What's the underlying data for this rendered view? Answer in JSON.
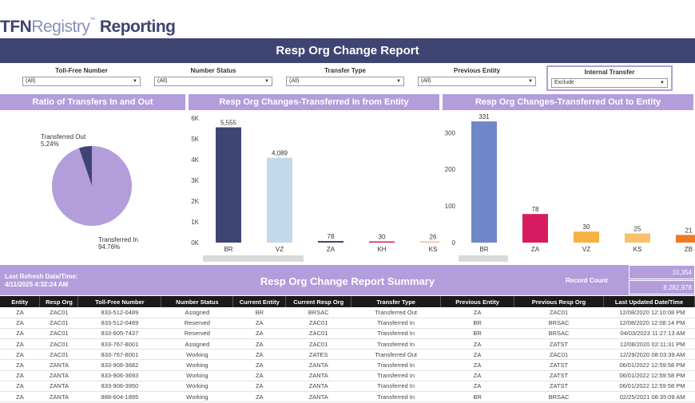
{
  "logo": {
    "tfn": "TFN",
    "registry": "Registry",
    "tm": "™",
    "reporting": "Reporting"
  },
  "title": "Resp Org Change Report",
  "filters": [
    {
      "label": "Toll-Free Number",
      "value": "(All)"
    },
    {
      "label": "Number Status",
      "value": "(All)"
    },
    {
      "label": "Transfer Type",
      "value": "(All)"
    },
    {
      "label": "Previous Entity",
      "value": "(All)"
    },
    {
      "label": "Internal Transfer",
      "value": "Exclude"
    }
  ],
  "sections": {
    "ratio": "Ratio of Transfers In and Out",
    "in": "Resp Org Changes-Transferred In from Entity",
    "out": "Resp Org Changes-Transferred Out to Entity"
  },
  "chart_data": [
    {
      "type": "pie",
      "title": "Ratio of Transfers In and Out",
      "slices": [
        {
          "label": "Transferred Out",
          "pct_label": "5.24%",
          "value": 5.24,
          "color": "#3f4573"
        },
        {
          "label": "Transferred In",
          "pct_label": "94.76%",
          "value": 94.76,
          "color": "#b39ddb"
        }
      ]
    },
    {
      "type": "bar",
      "title": "Resp Org Changes-Transferred In from Entity",
      "categories": [
        "BR",
        "VZ",
        "ZA",
        "KH",
        "KS"
      ],
      "values": [
        5555,
        4089,
        78,
        30,
        26
      ],
      "value_labels": [
        "5,555",
        "4,089",
        "78",
        "30",
        "26"
      ],
      "colors": [
        "#3f4573",
        "#c2d8ec",
        "#3f4573",
        "#d81b60",
        "#f7b89b"
      ],
      "ylim": [
        0,
        6000
      ],
      "yticks": [
        0,
        1000,
        2000,
        3000,
        4000,
        5000,
        6000
      ],
      "ytick_labels": [
        "0K",
        "1K",
        "2K",
        "3K",
        "4K",
        "5K",
        "6K"
      ]
    },
    {
      "type": "bar",
      "title": "Resp Org Changes-Transferred Out to Entity",
      "categories": [
        "BR",
        "ZA",
        "VZ",
        "KS",
        "ZB"
      ],
      "values": [
        331,
        78,
        30,
        25,
        21
      ],
      "value_labels": [
        "331",
        "78",
        "30",
        "25",
        "21"
      ],
      "colors": [
        "#6f86c8",
        "#d81b60",
        "#f9b043",
        "#f9c26a",
        "#f07b20"
      ],
      "ylim": [
        0,
        340
      ],
      "yticks": [
        0,
        100,
        200,
        300
      ],
      "ytick_labels": [
        "0",
        "100",
        "200",
        "300"
      ]
    }
  ],
  "summary": {
    "refresh_label": "Last Refresh Date/Time:",
    "refresh_value": "4/11/2025 4:32:24 AM",
    "title": "Resp Org Change Report Summary",
    "record_count_label": "Record Count",
    "count1": "10,354",
    "count2": "8,282,978"
  },
  "table": {
    "headers": [
      "Entity",
      "Resp Org",
      "Toll-Free Number",
      "Number Status",
      "Current Entity",
      "Current Resp Org",
      "Transfer Type",
      "Previous Entity",
      "Previous Resp Org",
      "Last Updated Date/Time"
    ],
    "rows": [
      [
        "ZA",
        "ZAC01",
        "833-512-0489",
        "Assigned",
        "BR",
        "BRSAC",
        "Transferred Out",
        "ZA",
        "ZAC01",
        "12/08/2020 12:10:08 PM"
      ],
      [
        "ZA",
        "ZAC01",
        "833-512-0489",
        "Reserved",
        "ZA",
        "ZAC01",
        "Transferred In",
        "BR",
        "BRSAC",
        "12/08/2020 12:08:14 PM"
      ],
      [
        "ZA",
        "ZAC01",
        "833-605-7437",
        "Reserved",
        "ZA",
        "ZAC01",
        "Transferred In",
        "BR",
        "BRSAC",
        "04/03/2023 11:27:13 AM"
      ],
      [
        "ZA",
        "ZAC01",
        "833-767-8001",
        "Assigned",
        "ZA",
        "ZAC01",
        "Transferred In",
        "ZA",
        "ZATST",
        "12/08/2020 02:11:31 PM"
      ],
      [
        "ZA",
        "ZAC01",
        "833-767-8001",
        "Working",
        "ZA",
        "ZATES",
        "Transferred Out",
        "ZA",
        "ZAC01",
        "12/29/2020 08:03:39 AM"
      ],
      [
        "ZA",
        "ZANTA",
        "833-906-3682",
        "Working",
        "ZA",
        "ZANTA",
        "Transferred In",
        "ZA",
        "ZATST",
        "06/01/2022 12:59:58 PM"
      ],
      [
        "ZA",
        "ZANTA",
        "833-906-3693",
        "Working",
        "ZA",
        "ZANTA",
        "Transferred In",
        "ZA",
        "ZATST",
        "06/01/2022 12:59:58 PM"
      ],
      [
        "ZA",
        "ZANTA",
        "833-906-3950",
        "Working",
        "ZA",
        "ZANTA",
        "Transferred In",
        "ZA",
        "ZATST",
        "06/01/2022 12:59:58 PM"
      ],
      [
        "ZA",
        "ZANTA",
        "888-604-1895",
        "Working",
        "ZA",
        "ZANTA",
        "Transferred In",
        "BR",
        "BRSAC",
        "02/25/2021 08:35:09 AM"
      ]
    ]
  }
}
